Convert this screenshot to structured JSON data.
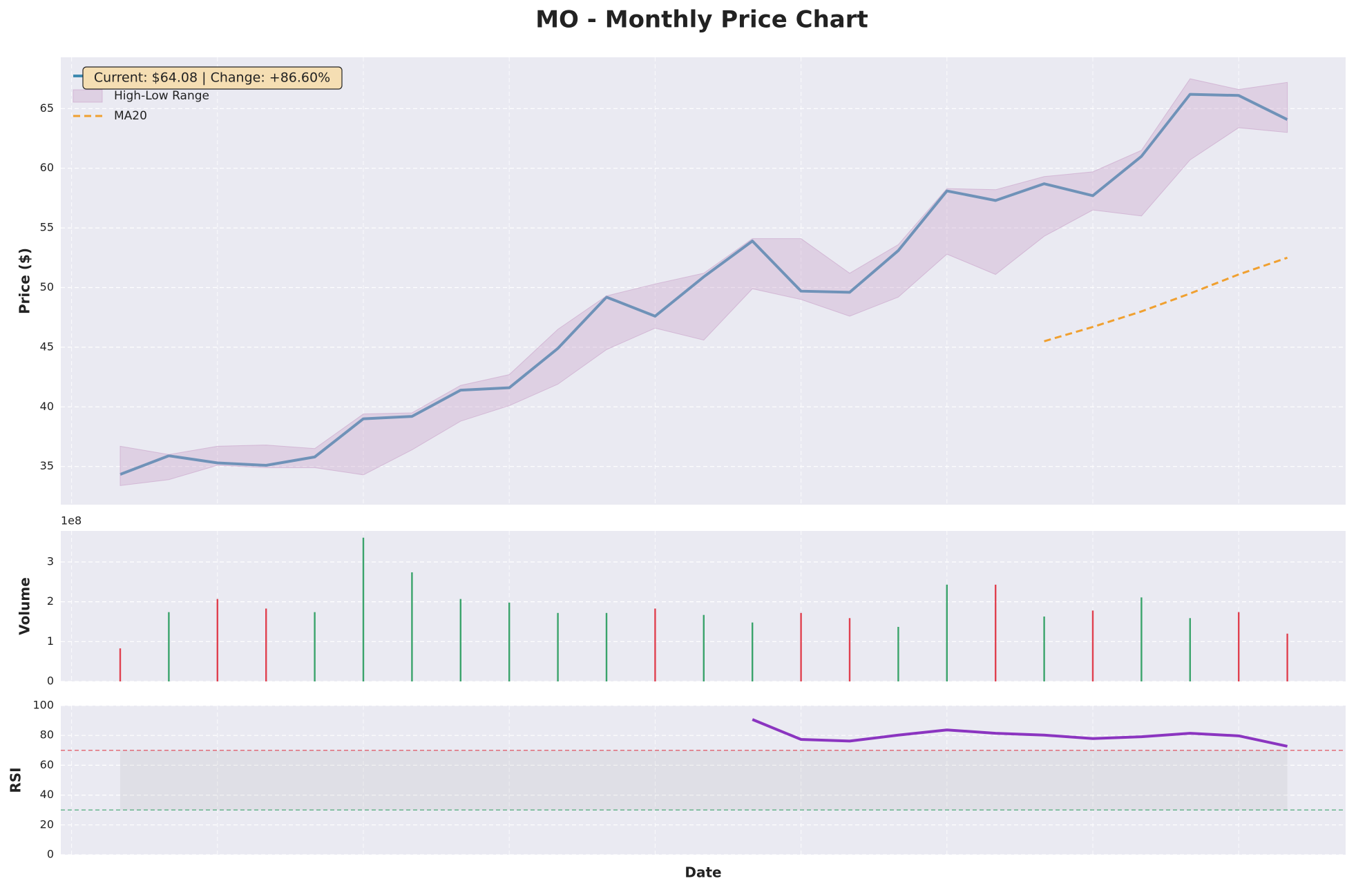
{
  "title": "MO - Monthly Price Chart",
  "chart_data": [
    {
      "type": "line",
      "ylabel": "Price ($)",
      "annotation": "Current: $64.08 | Change: +86.60%",
      "categories": [
        null,
        null,
        null,
        null,
        null,
        null,
        null,
        null,
        null,
        null,
        null,
        null,
        null,
        null,
        null,
        null,
        null,
        null,
        null,
        null,
        null,
        null,
        null,
        null,
        null
      ],
      "ylim": [
        31.8,
        69.3
      ],
      "yticks": [
        35,
        40,
        45,
        50,
        55,
        60,
        65
      ],
      "grid": true,
      "legend": "upper left",
      "series": [
        {
          "name": "Close Price",
          "color": "#3f8ab0",
          "values": [
            34.34,
            35.9,
            35.3,
            35.1,
            35.8,
            39.0,
            39.2,
            41.4,
            41.6,
            44.9,
            49.2,
            47.6,
            50.9,
            53.9,
            49.7,
            49.6,
            53.1,
            58.1,
            57.3,
            58.7,
            57.7,
            61.0,
            66.2,
            66.1,
            64.08
          ]
        },
        {
          "name": "High-Low Range",
          "color": "#c8a0c8",
          "high": [
            36.7,
            36.0,
            36.7,
            36.8,
            36.5,
            39.4,
            39.5,
            41.8,
            42.7,
            46.5,
            49.3,
            50.3,
            51.2,
            54.1,
            54.1,
            51.2,
            53.6,
            58.3,
            58.2,
            59.3,
            59.7,
            61.5,
            67.5,
            66.6,
            67.2
          ],
          "low": [
            33.4,
            33.9,
            35.1,
            34.9,
            34.9,
            34.3,
            36.4,
            38.8,
            40.1,
            41.9,
            44.8,
            46.6,
            45.6,
            49.9,
            49.0,
            47.6,
            49.2,
            52.8,
            51.1,
            54.3,
            56.5,
            56.0,
            60.7,
            63.4,
            63.0
          ]
        },
        {
          "name": "MA20",
          "color": "#f0a030",
          "dashed": true,
          "values": [
            null,
            null,
            null,
            null,
            null,
            null,
            null,
            null,
            null,
            null,
            null,
            null,
            null,
            null,
            null,
            null,
            null,
            null,
            null,
            45.5,
            46.7,
            48.0,
            49.5,
            51.1,
            52.5
          ]
        }
      ]
    },
    {
      "type": "bar",
      "ylabel": "Volume",
      "y_offset_label": "1e8",
      "categories": [
        null,
        null,
        null,
        null,
        null,
        null,
        null,
        null,
        null,
        null,
        null,
        null,
        null,
        null,
        null,
        null,
        null,
        null,
        null,
        null,
        null,
        null,
        null,
        null,
        null
      ],
      "ylim": [
        0,
        378000000
      ],
      "yticks": [
        {
          "value": 0,
          "label": "0"
        },
        {
          "value": 100000000,
          "label": "1"
        },
        {
          "value": 200000000,
          "label": "2"
        },
        {
          "value": 300000000,
          "label": "3"
        }
      ],
      "grid": true,
      "values": [
        83000000,
        174000000,
        207000000,
        183000000,
        174000000,
        361000000,
        274000000,
        207000000,
        198000000,
        172000000,
        172000000,
        183000000,
        167000000,
        148000000,
        172000000,
        159000000,
        137000000,
        243000000,
        243000000,
        163000000,
        178000000,
        211000000,
        159000000,
        174000000,
        120000000
      ],
      "colors": [
        "#e0404f",
        "#3aa36b",
        "#e0404f",
        "#e0404f",
        "#3aa36b",
        "#3aa36b",
        "#3aa36b",
        "#3aa36b",
        "#3aa36b",
        "#3aa36b",
        "#3aa36b",
        "#e0404f",
        "#3aa36b",
        "#3aa36b",
        "#e0404f",
        "#e0404f",
        "#3aa36b",
        "#3aa36b",
        "#e0404f",
        "#3aa36b",
        "#e0404f",
        "#3aa36b",
        "#3aa36b",
        "#e0404f",
        "#e0404f"
      ]
    },
    {
      "type": "line",
      "ylabel": "RSI",
      "xlabel": "Date",
      "categories": [
        null,
        null,
        null,
        null,
        null,
        null,
        null,
        null,
        null,
        null,
        null,
        null,
        null,
        null,
        null,
        null,
        null,
        null,
        null,
        null,
        null,
        null,
        null,
        null,
        null
      ],
      "ylim": [
        0,
        100
      ],
      "yticks": [
        0,
        20,
        40,
        60,
        80,
        100
      ],
      "grid": true,
      "hlines": [
        {
          "value": 70,
          "color": "#e0404f"
        },
        {
          "value": 30,
          "color": "#3aa36b"
        }
      ],
      "series": [
        {
          "color": "#8b35c0",
          "values": [
            null,
            null,
            null,
            null,
            null,
            null,
            null,
            null,
            null,
            null,
            null,
            null,
            null,
            90.7,
            77.3,
            76.2,
            80.2,
            83.7,
            81.4,
            80.2,
            77.9,
            79.1,
            81.4,
            79.7,
            72.7
          ]
        }
      ]
    }
  ]
}
